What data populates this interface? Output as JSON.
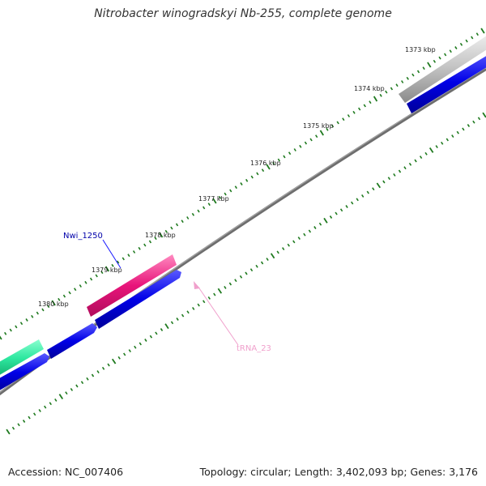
{
  "title": "Nitrobacter winogradskyi Nb-255, complete genome",
  "footer": {
    "accession": "Accession: NC_007406",
    "summary": "Topology: circular; Length: 3,402,093 bp; Genes: 3,176"
  },
  "kbp_labels": [
    "1373 kbp",
    "1374 kbp",
    "1375 kbp",
    "1376 kbp",
    "1377 kbp",
    "1378 kbp",
    "1379 kbp",
    "1380 kbp"
  ],
  "features": {
    "nwi_label": "Nwi_1250",
    "trna_label": "tRNA_23"
  },
  "colors": {
    "backbone": "#808080",
    "tick": "#1f7a1f",
    "forward_gene": "#e8147a",
    "reverse_gene": "#0000e6",
    "other_gene": "#2ee8a0",
    "grey_feature": "#b8b8b8",
    "trna": "#f0a0cc",
    "nwi_label": "#0000aa"
  }
}
